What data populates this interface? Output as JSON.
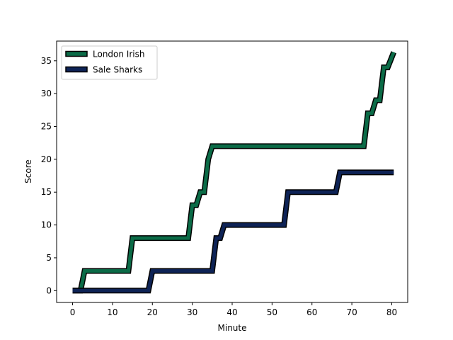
{
  "chart_data": {
    "type": "line",
    "title": "",
    "xlabel": "Minute",
    "ylabel": "Score",
    "xlim": [
      -4,
      84
    ],
    "ylim": [
      -1.8,
      38.0
    ],
    "xticks": [
      0,
      10,
      20,
      30,
      40,
      50,
      60,
      70,
      80
    ],
    "yticks": [
      0,
      5,
      10,
      15,
      20,
      25,
      30,
      35
    ],
    "legend_position": "top-left",
    "grid": false,
    "series": [
      {
        "name": "London Irish",
        "color": "#0b6b47",
        "outline": "#000000",
        "points": [
          [
            0,
            0
          ],
          [
            2,
            0
          ],
          [
            3,
            3
          ],
          [
            14,
            3
          ],
          [
            15,
            8
          ],
          [
            29,
            8
          ],
          [
            30,
            13
          ],
          [
            31,
            13
          ],
          [
            32,
            15
          ],
          [
            33,
            15
          ],
          [
            34,
            20
          ],
          [
            35,
            22
          ],
          [
            73,
            22
          ],
          [
            74,
            27
          ],
          [
            75,
            27
          ],
          [
            76,
            29
          ],
          [
            77,
            29
          ],
          [
            78,
            34
          ],
          [
            79,
            34
          ],
          [
            80.5,
            36.3
          ]
        ]
      },
      {
        "name": "Sale Sharks",
        "color": "#0e2356",
        "outline": "#000000",
        "points": [
          [
            0,
            0
          ],
          [
            19,
            0
          ],
          [
            20,
            3
          ],
          [
            35,
            3
          ],
          [
            36,
            8
          ],
          [
            37,
            8
          ],
          [
            38,
            10
          ],
          [
            53,
            10
          ],
          [
            54,
            15
          ],
          [
            66,
            15
          ],
          [
            67,
            18
          ],
          [
            80.5,
            18
          ]
        ]
      }
    ]
  }
}
